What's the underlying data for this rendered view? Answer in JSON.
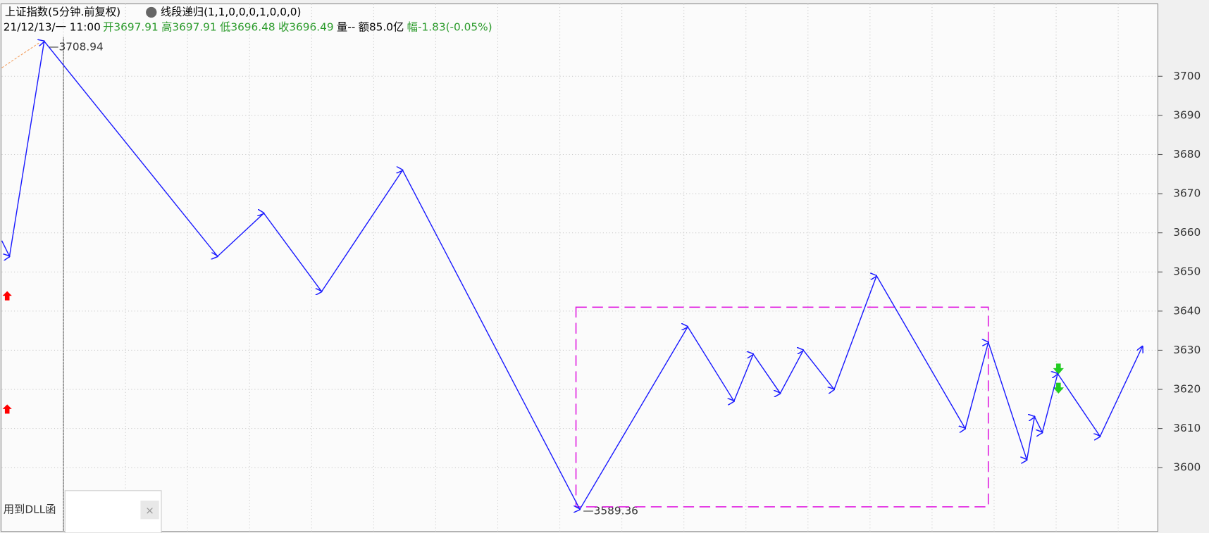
{
  "chart_data": {
    "type": "line",
    "title": "上证指数(5分钟.前复权)",
    "indicator": "线段递归(1,1,0,0,0,1,0,0,0)",
    "info": {
      "date": "21/12/13/一 11:00",
      "open_label": "开",
      "open": "3697.91",
      "high_label": "高",
      "high": "3697.91",
      "low_label": "低",
      "low": "3696.48",
      "close_label": "收",
      "close": "3696.49",
      "volume": "量--",
      "amount": "额85.0亿",
      "change": "幅-1.83(-0.05%)"
    },
    "annotations": [
      "3708.94",
      "3589.36"
    ],
    "footer_text": "用到DLL函",
    "x": [
      0,
      2,
      11,
      56,
      68,
      83,
      104,
      150,
      178,
      190,
      195,
      202,
      208,
      216,
      227,
      250,
      256,
      266,
      268,
      270,
      274,
      285,
      296
    ],
    "series": [
      {
        "name": "线段",
        "color": "#1a1aff",
        "values": [
          3658,
          3654,
          3708.94,
          3654,
          3665,
          3645,
          3676,
          3589.36,
          3636,
          3617,
          3629,
          3619,
          3630,
          3620,
          3649,
          3610,
          3632,
          3602,
          3613,
          3609,
          3624,
          3608,
          3631
        ]
      }
    ],
    "box": {
      "x": [
        149,
        256
      ],
      "y": [
        3590,
        3641
      ],
      "color": "#e020e0"
    },
    "xlim": [
      0,
      300
    ],
    "ylim": [
      3583.7,
      3718.5
    ],
    "yticks": [
      3600,
      3610,
      3620,
      3630,
      3640,
      3650,
      3660,
      3670,
      3680,
      3690,
      3700
    ],
    "grid": true
  }
}
